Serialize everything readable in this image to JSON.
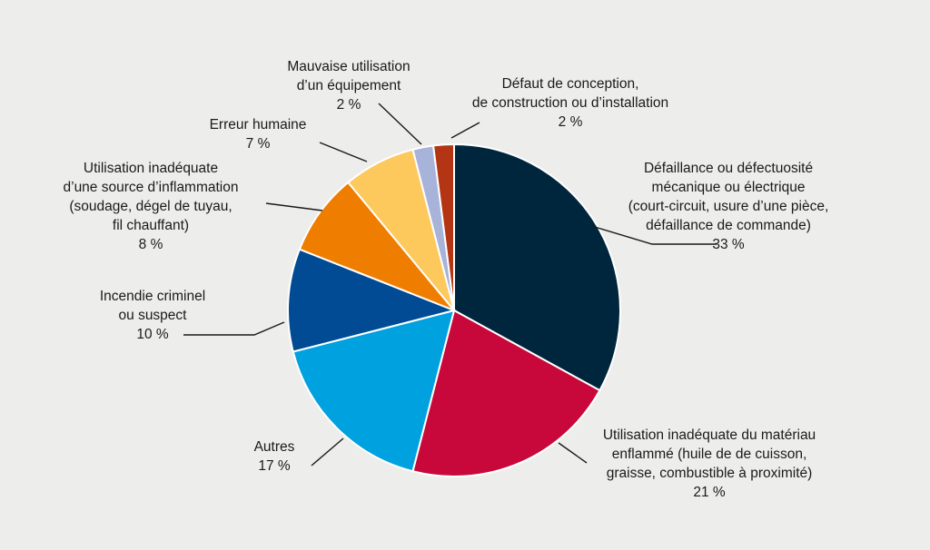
{
  "chart_data": {
    "type": "pie",
    "title": "",
    "slices": [
      {
        "label_lines": [
          "Défaillance ou défectuosité",
          "mécanique ou électrique",
          "(court-circuit, usure d’une pièce,",
          "défaillance de commande)"
        ],
        "percent_label": "33 %",
        "value": 33,
        "color": "#00263d"
      },
      {
        "label_lines": [
          "Utilisation inadéquate du matériau",
          "enflammé (huile de de cuisson,",
          "graisse, combustible à proximité)"
        ],
        "percent_label": "21 %",
        "value": 21,
        "color": "#c8083a"
      },
      {
        "label_lines": [
          "Autres"
        ],
        "percent_label": "17 %",
        "value": 17,
        "color": "#00a1df"
      },
      {
        "label_lines": [
          "Incendie criminel",
          "ou suspect"
        ],
        "percent_label": "10 %",
        "value": 10,
        "color": "#004b93"
      },
      {
        "label_lines": [
          "Utilisation inadéquate",
          "d’une source d’inflammation",
          "(soudage, dégel de tuyau,",
          "fil chauffant)"
        ],
        "percent_label": "8 %",
        "value": 8,
        "color": "#ef7d00"
      },
      {
        "label_lines": [
          "Erreur humaine"
        ],
        "percent_label": "7 %",
        "value": 7,
        "color": "#fdc95d"
      },
      {
        "label_lines": [
          "Mauvaise utilisation",
          "d’un équipement"
        ],
        "percent_label": "2 %",
        "value": 2,
        "color": "#a7b3d9"
      },
      {
        "label_lines": [
          "Défaut de conception,",
          "de construction ou d’installation"
        ],
        "percent_label": "2 %",
        "value": 2,
        "color": "#b43514"
      }
    ]
  }
}
